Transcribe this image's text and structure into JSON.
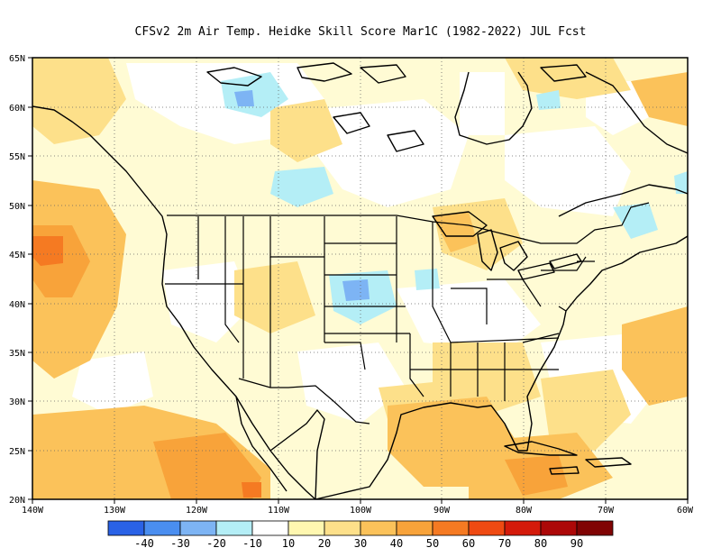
{
  "title": "CFSv2  2m Air Temp. Heidke Skill Score Mar1C (1982-2022) JUL Fcst",
  "lat_labels": [
    "65N",
    "60N",
    "55N",
    "50N",
    "45N",
    "40N",
    "35N",
    "30N",
    "25N",
    "20N"
  ],
  "lon_labels": [
    "140W",
    "130W",
    "120W",
    "110W",
    "100W",
    "90W",
    "80W",
    "70W",
    "60W"
  ],
  "colorbar": {
    "colors": [
      "#2a62e6",
      "#4a8ef0",
      "#7db4f4",
      "#b4eef6",
      "#ffffff",
      "#fff7b0",
      "#fde08a",
      "#fbc25a",
      "#f8a33a",
      "#f57a22",
      "#ef4a12",
      "#d41a0a",
      "#ac0808",
      "#800404"
    ],
    "labels": [
      "-40",
      "-30",
      "-20",
      "-10",
      "10",
      "20",
      "30",
      "40",
      "50",
      "60",
      "70",
      "80",
      "90"
    ]
  },
  "map_palette": {
    "blue_light": "#b4eef6",
    "blue_mid": "#7db4f4",
    "yellow_light": "#fff7b0",
    "yellow_mid": "#fde08a",
    "orange_light": "#fbc25a",
    "orange_mid": "#f8a33a",
    "orange_deep": "#f57a22"
  }
}
